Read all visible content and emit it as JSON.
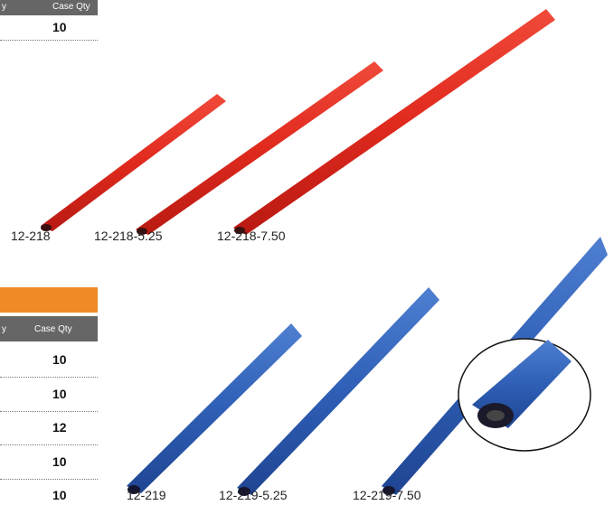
{
  "top_table": {
    "header": [
      "y",
      "Case Qty"
    ],
    "rows": [
      [
        "10"
      ]
    ]
  },
  "red_products": {
    "labels": [
      "12-218",
      "12-218-5.25",
      "12-218-7.50"
    ]
  },
  "bottom_table": {
    "header": [
      "y",
      "Case Qty"
    ],
    "rows": [
      [
        "10"
      ],
      [
        "10"
      ],
      [
        "12"
      ],
      [
        "10"
      ],
      [
        "10"
      ]
    ]
  },
  "blue_products": {
    "labels": [
      "12-219",
      "12-219-5.25",
      "12-219-7.50"
    ]
  }
}
